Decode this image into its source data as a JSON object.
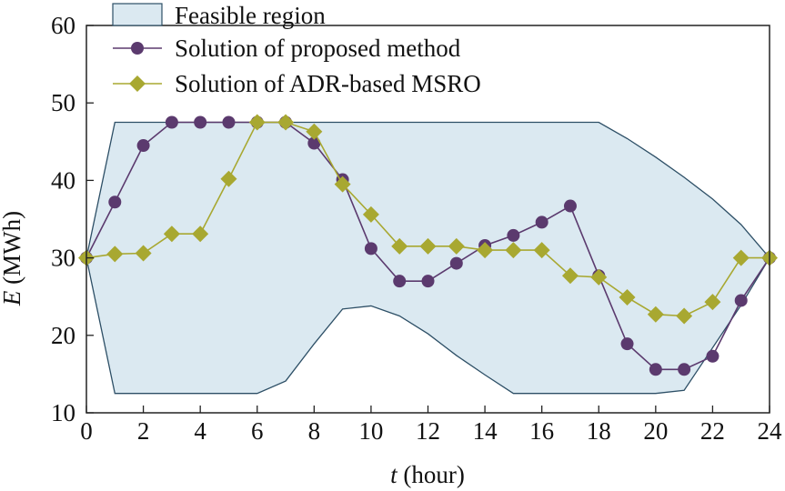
{
  "chart_data": {
    "type": "line",
    "xlabel": {
      "var": "t",
      "unit": " (hour)"
    },
    "ylabel": {
      "var": "E",
      "unit": " (MWh)"
    },
    "xlim": [
      0,
      24
    ],
    "ylim": [
      10,
      60
    ],
    "xticks": [
      0,
      2,
      4,
      6,
      8,
      10,
      12,
      14,
      16,
      18,
      20,
      22,
      24
    ],
    "yticks": [
      10,
      20,
      30,
      40,
      50,
      60
    ],
    "grid": false,
    "legend_position": "top-left",
    "feasible_region": {
      "name": "Feasible region",
      "color": "#dbe9f1",
      "edge_color": "#2d4f66",
      "upper": [
        [
          0,
          30
        ],
        [
          1,
          47.5
        ],
        [
          2,
          47.5
        ],
        [
          3,
          47.5
        ],
        [
          4,
          47.5
        ],
        [
          5,
          47.5
        ],
        [
          6,
          47.5
        ],
        [
          7,
          47.5
        ],
        [
          8,
          47.5
        ],
        [
          9,
          47.5
        ],
        [
          10,
          47.5
        ],
        [
          11,
          47.5
        ],
        [
          12,
          47.5
        ],
        [
          13,
          47.5
        ],
        [
          14,
          47.5
        ],
        [
          15,
          47.5
        ],
        [
          16,
          47.5
        ],
        [
          17,
          47.5
        ],
        [
          18,
          47.5
        ],
        [
          19,
          45.4
        ],
        [
          20,
          43.0
        ],
        [
          21,
          40.4
        ],
        [
          22,
          37.6
        ],
        [
          23,
          34.3
        ],
        [
          24,
          30
        ]
      ],
      "lower": [
        [
          0,
          30
        ],
        [
          1,
          12.5
        ],
        [
          2,
          12.5
        ],
        [
          3,
          12.5
        ],
        [
          4,
          12.5
        ],
        [
          5,
          12.5
        ],
        [
          6,
          12.5
        ],
        [
          7,
          14.1
        ],
        [
          8,
          18.9
        ],
        [
          9,
          23.4
        ],
        [
          10,
          23.8
        ],
        [
          11,
          22.5
        ],
        [
          12,
          20.2
        ],
        [
          13,
          17.4
        ],
        [
          14,
          14.9
        ],
        [
          15,
          12.5
        ],
        [
          16,
          12.5
        ],
        [
          17,
          12.5
        ],
        [
          18,
          12.5
        ],
        [
          19,
          12.5
        ],
        [
          20,
          12.5
        ],
        [
          21,
          12.9
        ],
        [
          22,
          18.4
        ],
        [
          23,
          23.9
        ],
        [
          24,
          30
        ]
      ]
    },
    "series": [
      {
        "name": "Solution of proposed method",
        "color": "#5b3a6e",
        "marker": "circle",
        "x": [
          0,
          1,
          2,
          3,
          4,
          5,
          6,
          7,
          8,
          9,
          10,
          11,
          12,
          13,
          14,
          15,
          16,
          17,
          18,
          19,
          20,
          21,
          22,
          23,
          24
        ],
        "y": [
          30,
          37.2,
          44.5,
          47.5,
          47.5,
          47.5,
          47.5,
          47.5,
          44.8,
          40.1,
          31.2,
          27,
          27,
          29.3,
          31.6,
          32.9,
          34.6,
          36.7,
          27.7,
          18.9,
          15.6,
          15.6,
          17.3,
          24.5,
          30
        ]
      },
      {
        "name": "Solution of ADR-based MSRO",
        "color": "#a8a831",
        "marker": "diamond",
        "x": [
          0,
          1,
          2,
          3,
          4,
          5,
          6,
          7,
          8,
          9,
          10,
          11,
          12,
          13,
          14,
          15,
          16,
          17,
          18,
          19,
          20,
          21,
          22,
          23,
          24
        ],
        "y": [
          30,
          30.5,
          30.6,
          33.1,
          33.1,
          40.2,
          47.5,
          47.5,
          46.3,
          39.5,
          35.6,
          31.5,
          31.5,
          31.5,
          31.0,
          31.0,
          31.0,
          27.7,
          27.5,
          24.9,
          22.7,
          22.5,
          24.3,
          30,
          30
        ]
      }
    ]
  }
}
